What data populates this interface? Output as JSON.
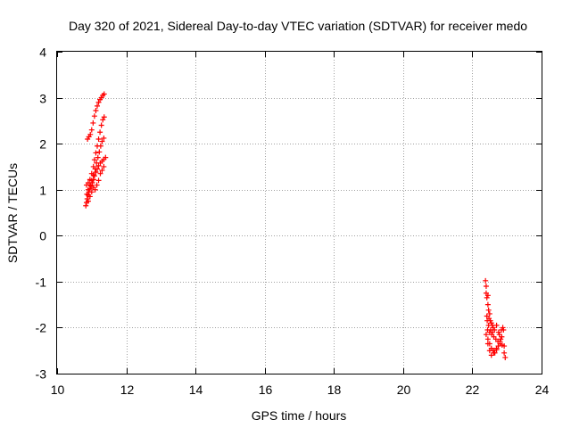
{
  "chart_data": {
    "type": "scatter",
    "title": "Day 320 of 2021, Sidereal Day-to-day VTEC variation (SDTVAR) for receiver medo",
    "xlabel": "GPS time / hours",
    "ylabel": "SDTVAR / TECUs",
    "xlim": [
      10,
      24
    ],
    "ylim": [
      -3,
      4
    ],
    "x_ticks": [
      10,
      12,
      14,
      16,
      18,
      20,
      22,
      24
    ],
    "y_ticks": [
      -3,
      -2,
      -1,
      0,
      1,
      2,
      3,
      4
    ],
    "grid": true,
    "marker": "+",
    "series": [
      {
        "name": "SDTVAR",
        "color": "#ff0000",
        "points": [
          [
            10.83,
            0.65
          ],
          [
            10.85,
            0.72
          ],
          [
            10.87,
            0.8
          ],
          [
            10.9,
            0.88
          ],
          [
            10.92,
            0.95
          ],
          [
            10.95,
            1.02
          ],
          [
            10.98,
            1.08
          ],
          [
            11.02,
            1.15
          ],
          [
            11.05,
            1.22
          ],
          [
            11.08,
            1.3
          ],
          [
            11.12,
            1.38
          ],
          [
            11.16,
            1.45
          ],
          [
            11.2,
            1.52
          ],
          [
            11.25,
            1.58
          ],
          [
            11.3,
            1.62
          ],
          [
            11.35,
            1.66
          ],
          [
            11.4,
            1.7
          ],
          [
            10.86,
            0.9
          ],
          [
            10.9,
            1.0
          ],
          [
            10.95,
            1.1
          ],
          [
            11.0,
            1.2
          ],
          [
            11.05,
            1.32
          ],
          [
            11.1,
            1.45
          ],
          [
            11.14,
            1.58
          ],
          [
            11.18,
            1.7
          ],
          [
            11.22,
            1.82
          ],
          [
            11.26,
            1.95
          ],
          [
            11.3,
            2.05
          ],
          [
            11.35,
            2.12
          ],
          [
            10.85,
            1.1
          ],
          [
            10.9,
            1.15
          ],
          [
            10.95,
            1.22
          ],
          [
            11.0,
            1.35
          ],
          [
            11.05,
            1.5
          ],
          [
            11.08,
            1.65
          ],
          [
            11.12,
            1.8
          ],
          [
            11.16,
            1.95
          ],
          [
            11.2,
            2.1
          ],
          [
            11.24,
            2.25
          ],
          [
            11.28,
            2.4
          ],
          [
            11.32,
            2.52
          ],
          [
            11.36,
            2.58
          ],
          [
            10.88,
            2.1
          ],
          [
            10.92,
            2.15
          ],
          [
            10.96,
            2.2
          ],
          [
            11.0,
            2.3
          ],
          [
            11.04,
            2.45
          ],
          [
            11.08,
            2.6
          ],
          [
            11.12,
            2.72
          ],
          [
            11.16,
            2.82
          ],
          [
            11.2,
            2.9
          ],
          [
            11.24,
            2.96
          ],
          [
            11.28,
            3.0
          ],
          [
            11.32,
            3.05
          ],
          [
            11.36,
            3.08
          ],
          [
            10.9,
            0.75
          ],
          [
            10.95,
            0.85
          ],
          [
            11.0,
            0.95
          ],
          [
            11.05,
            1.05
          ],
          [
            11.1,
            1.0
          ],
          [
            11.15,
            1.1
          ],
          [
            11.2,
            1.2
          ],
          [
            11.25,
            1.35
          ],
          [
            11.3,
            1.42
          ],
          [
            11.35,
            1.5
          ],
          [
            22.38,
            -0.98
          ],
          [
            22.4,
            -1.1
          ],
          [
            22.4,
            -1.25
          ],
          [
            22.42,
            -1.35
          ],
          [
            22.45,
            -1.3
          ],
          [
            22.45,
            -1.5
          ],
          [
            22.47,
            -1.62
          ],
          [
            22.5,
            -1.7
          ],
          [
            22.42,
            -1.75
          ],
          [
            22.48,
            -1.8
          ],
          [
            22.52,
            -1.85
          ],
          [
            22.55,
            -1.9
          ],
          [
            22.58,
            -1.95
          ],
          [
            22.6,
            -2.0
          ],
          [
            22.44,
            -2.05
          ],
          [
            22.5,
            -2.1
          ],
          [
            22.56,
            -2.15
          ],
          [
            22.62,
            -2.2
          ],
          [
            22.68,
            -2.25
          ],
          [
            22.74,
            -2.3
          ],
          [
            22.8,
            -2.35
          ],
          [
            22.86,
            -2.38
          ],
          [
            22.92,
            -2.4
          ],
          [
            22.4,
            -2.15
          ],
          [
            22.45,
            -2.25
          ],
          [
            22.5,
            -2.35
          ],
          [
            22.55,
            -2.45
          ],
          [
            22.6,
            -2.5
          ],
          [
            22.65,
            -2.55
          ],
          [
            22.7,
            -2.48
          ],
          [
            22.75,
            -2.4
          ],
          [
            22.8,
            -2.3
          ],
          [
            22.85,
            -2.2
          ],
          [
            22.9,
            -2.05
          ],
          [
            22.45,
            -2.35
          ],
          [
            22.5,
            -2.5
          ],
          [
            22.55,
            -2.6
          ],
          [
            22.62,
            -2.55
          ],
          [
            22.7,
            -2.45
          ],
          [
            22.78,
            -2.15
          ],
          [
            22.84,
            -2.05
          ],
          [
            22.88,
            -2.0
          ],
          [
            22.92,
            -2.55
          ],
          [
            22.95,
            -2.65
          ],
          [
            22.43,
            -1.85
          ],
          [
            22.47,
            -1.95
          ],
          [
            22.53,
            -2.05
          ],
          [
            22.58,
            -2.1
          ],
          [
            22.64,
            -2.05
          ],
          [
            22.7,
            -1.95
          ],
          [
            22.76,
            -2.1
          ],
          [
            22.82,
            -2.25
          ]
        ]
      }
    ]
  }
}
